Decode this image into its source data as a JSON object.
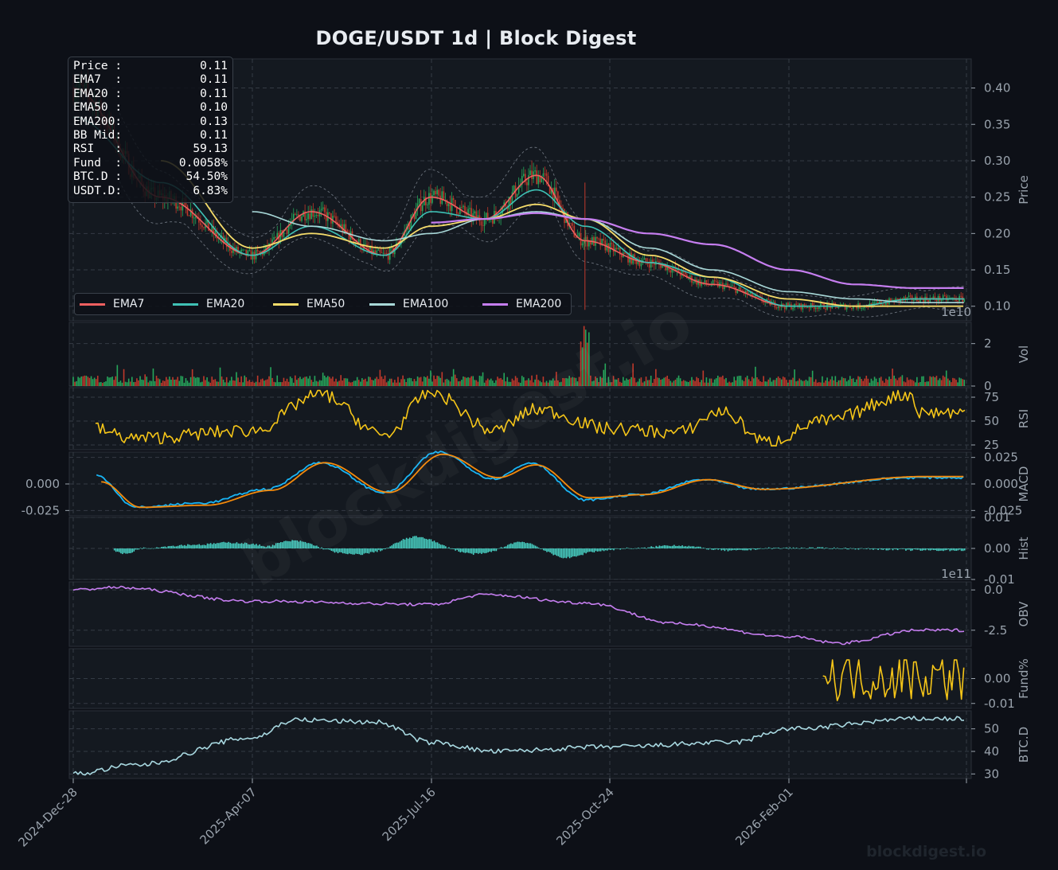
{
  "title": "DOGE/USDT  1d  |  Block Digest",
  "watermark": "blockdigest.io",
  "colors": {
    "background": "#0d1017",
    "panel": "#141920",
    "grid": "#343b44",
    "text": "#9aa3ad",
    "ema7": "#f06060",
    "ema20": "#3fc1b5",
    "ema50": "#f5dc6a",
    "ema100": "#a8d8d8",
    "ema200": "#c67ef0",
    "rsi": "#f5c518",
    "macd": "#19b5f5",
    "signal": "#f58a0b",
    "hist": "#48d1c4",
    "obv": "#c67ef0",
    "funding": "#f5c518",
    "btcd": "#a8d8e0",
    "up": "#26a65b",
    "down": "#c0392b"
  },
  "info_box": [
    {
      "label": "Price :",
      "value": "0.11"
    },
    {
      "label": "EMA7  :",
      "value": "0.11"
    },
    {
      "label": "EMA20 :",
      "value": "0.11"
    },
    {
      "label": "EMA50 :",
      "value": "0.10"
    },
    {
      "label": "EMA200:",
      "value": "0.13"
    },
    {
      "label": "BB Mid:",
      "value": "0.11"
    },
    {
      "label": "RSI   :",
      "value": "59.13"
    },
    {
      "label": "Fund  :",
      "value": "0.0058%"
    },
    {
      "label": "BTC.D :",
      "value": "54.50%"
    },
    {
      "label": "USDT.D:",
      "value": "6.83%"
    }
  ],
  "legend": [
    "EMA7",
    "EMA20",
    "EMA50",
    "EMA100",
    "EMA200"
  ],
  "x_ticks": [
    "2024-Dec-28",
    "2025-Apr-07",
    "2025-Jul-16",
    "2025-Oct-24",
    "2026-Feb-01"
  ],
  "chart_data": [
    {
      "type": "candlestick",
      "panel": "price",
      "ylabel": "Price",
      "ylim": [
        0.08,
        0.44
      ],
      "yticks": [
        "0.10",
        "0.15",
        "0.20",
        "0.25",
        "0.30",
        "0.35",
        "0.40"
      ],
      "scale_note": "1e10",
      "x_dates": [
        "2024-12-28",
        "2025-02-15",
        "2025-04-07",
        "2025-05-10",
        "2025-06-20",
        "2025-07-16",
        "2025-08-15",
        "2025-09-13",
        "2025-10-10",
        "2025-11-15",
        "2025-12-20",
        "2026-02-01",
        "2026-03-10",
        "2026-04-12"
      ],
      "series": [
        {
          "name": "EMA7",
          "values": [
            0.4,
            0.25,
            0.17,
            0.23,
            0.17,
            0.25,
            0.22,
            0.28,
            0.19,
            0.16,
            0.13,
            0.1,
            0.1,
            0.11
          ]
        },
        {
          "name": "EMA20",
          "values": [
            0.36,
            0.27,
            0.17,
            0.21,
            0.17,
            0.23,
            0.22,
            0.26,
            0.21,
            0.16,
            0.14,
            0.1,
            0.1,
            0.11
          ]
        },
        {
          "name": "EMA50",
          "values": [
            null,
            0.3,
            0.18,
            0.2,
            0.18,
            0.21,
            0.22,
            0.24,
            0.22,
            0.17,
            0.14,
            0.11,
            0.1,
            0.1
          ]
        },
        {
          "name": "EMA100",
          "values": [
            null,
            null,
            0.23,
            0.21,
            0.19,
            0.2,
            0.22,
            0.23,
            0.22,
            0.18,
            0.15,
            0.12,
            0.11,
            0.105
          ]
        },
        {
          "name": "EMA200",
          "values": [
            null,
            null,
            null,
            null,
            null,
            0.215,
            0.22,
            0.228,
            0.22,
            0.2,
            0.185,
            0.15,
            0.13,
            0.125
          ]
        }
      ]
    },
    {
      "type": "bar",
      "panel": "volume",
      "ylabel": "Vol",
      "yticks": [
        "0",
        "2"
      ],
      "scale_note": "1e10",
      "ylim": [
        0,
        3
      ],
      "peaks": [
        {
          "x": "2025-10-10",
          "value": 2.9
        },
        {
          "x": "2024-12-28",
          "value": 0.8
        }
      ]
    },
    {
      "type": "line",
      "panel": "rsi",
      "ylabel": "RSI",
      "ylim": [
        20,
        85
      ],
      "yticks": [
        "25",
        "50",
        "75"
      ],
      "x_dates": [
        "2024-12-28",
        "2025-02-01",
        "2025-04-07",
        "2025-05-15",
        "2025-06-20",
        "2025-07-16",
        "2025-08-20",
        "2025-09-13",
        "2025-10-24",
        "2025-12-01",
        "2025-12-25",
        "2026-01-20",
        "2026-02-20",
        "2026-04-10",
        "2026-04-15"
      ],
      "values": [
        48,
        32,
        40,
        78,
        35,
        80,
        40,
        62,
        42,
        38,
        60,
        28,
        50,
        78,
        59.13
      ]
    },
    {
      "type": "line",
      "panel": "macd",
      "ylabel": "MACD",
      "ylim": [
        -0.03,
        0.03
      ],
      "yticks_right": [
        "0.025",
        "0.000",
        "-0.025"
      ],
      "yticks_left": [
        "0.000",
        "-0.025"
      ],
      "x_dates": [
        "2025-01-10",
        "2025-02-01",
        "2025-03-10",
        "2025-04-15",
        "2025-05-15",
        "2025-06-20",
        "2025-07-20",
        "2025-08-20",
        "2025-09-10",
        "2025-10-10",
        "2025-11-10",
        "2025-12-15",
        "2026-01-15",
        "2026-04-15"
      ],
      "series": [
        {
          "name": "MACD",
          "values": [
            0.008,
            -0.022,
            -0.018,
            -0.005,
            0.02,
            -0.008,
            0.03,
            0.005,
            0.02,
            -0.015,
            -0.01,
            0.004,
            -0.005,
            0.006
          ]
        },
        {
          "name": "Signal",
          "values": [
            0.002,
            -0.022,
            -0.02,
            -0.006,
            0.02,
            -0.008,
            0.028,
            0.006,
            0.018,
            -0.013,
            -0.01,
            0.004,
            -0.005,
            0.007
          ]
        }
      ]
    },
    {
      "type": "bar",
      "panel": "hist",
      "ylabel": "Hist",
      "ylim": [
        -0.01,
        0.01
      ],
      "yticks": [
        "0.01",
        "0.00",
        "-0.01"
      ]
    },
    {
      "type": "line",
      "panel": "obv",
      "ylabel": "OBV",
      "scale_note": "1e11",
      "ylim": [
        -3.5,
        0.5
      ],
      "yticks": [
        "0.0",
        "-2.5"
      ],
      "x_dates": [
        "2024-12-28",
        "2025-01-20",
        "2025-04-07",
        "2025-07-16",
        "2025-08-15",
        "2025-10-10",
        "2025-12-01",
        "2026-02-01",
        "2026-03-01",
        "2026-04-15"
      ],
      "values": [
        0.0,
        0.15,
        -0.7,
        -0.9,
        -0.3,
        -0.8,
        -2.1,
        -2.9,
        -3.3,
        -2.5
      ]
    },
    {
      "type": "line",
      "panel": "funding",
      "ylabel": "Fund%",
      "ylim": [
        -0.012,
        0.012
      ],
      "yticks": [
        "0.00",
        "-0.01"
      ],
      "x_dates": [
        "2026-02-20",
        "2026-04-15"
      ]
    },
    {
      "type": "line",
      "panel": "btcd",
      "ylabel": "BTC.D",
      "ylim": [
        28,
        58
      ],
      "yticks": [
        "30",
        "40",
        "50"
      ],
      "x_dates": [
        "2024-12-28",
        "2025-02-01",
        "2025-04-07",
        "2025-05-01",
        "2025-06-15",
        "2025-07-16",
        "2025-08-20",
        "2025-10-24",
        "2026-01-01",
        "2026-02-01",
        "2026-04-15"
      ],
      "values": [
        30,
        34,
        46,
        54,
        53,
        44,
        40,
        42,
        44,
        50,
        54.5
      ]
    }
  ]
}
